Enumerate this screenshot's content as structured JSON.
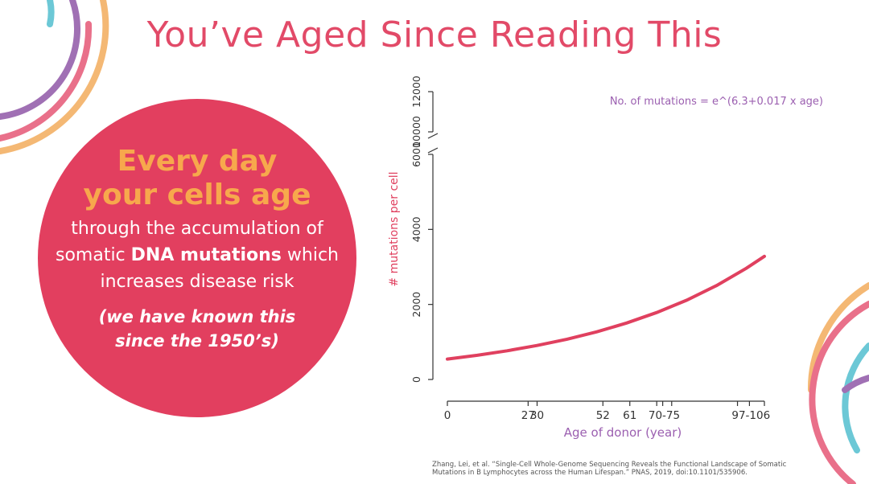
{
  "slide": {
    "title": "You’ve Aged Since Reading This",
    "callout": {
      "line1": "Every day",
      "line2": "your cells age",
      "body_line1": "through the accumulation of",
      "body_line2_pre": "somatic ",
      "body_line2_bold": "DNA mutations",
      "body_line2_post": " which",
      "body_line3": "increases disease risk",
      "note_line1": "(we have known this",
      "note_line2": "since the 1950’s)"
    },
    "citation_line1": "Zhang, Lei, et al. “Single-Cell Whole-Genome Sequencing Reveals the Functional Landscape of Somatic",
    "citation_line2": "Mutations in B Lymphocytes across the Human Lifespan.” PNAS, 2019, doi:10.1101/535906."
  },
  "colors": {
    "title": "#e24a68",
    "circle": "#e23f5f",
    "callout_heading": "#f7a84c",
    "curve": "#e0405f",
    "axis_label": "#9b5fb0",
    "arc_teal": "#6cc8d6",
    "arc_purple": "#a070b4",
    "arc_pink": "#e9708a",
    "arc_orange": "#f4b874"
  },
  "chart_data": {
    "type": "line",
    "formula": "No. of mutations = e^(6.3+0.017 x age)",
    "xlabel": "Age of donor (year)",
    "ylabel": "# mutations per cell",
    "x_ticks": [
      0,
      27,
      30,
      52,
      61,
      70,
      72,
      75,
      97,
      101,
      106
    ],
    "x_tick_labels": [
      {
        "label": "0",
        "x": 0
      },
      {
        "label": "27",
        "x": 27
      },
      {
        "label": "30",
        "x": 30
      },
      {
        "label": "52",
        "x": 52
      },
      {
        "label": "61",
        "x": 61
      },
      {
        "label": "70-75",
        "x": 72.5
      },
      {
        "label": "97-106",
        "x": 101.5
      }
    ],
    "xlim": [
      0,
      106
    ],
    "y_ticks_lower": [
      0,
      2000,
      4000,
      6000
    ],
    "y_ticks_upper": [
      10000,
      12000
    ],
    "ylim": [
      0,
      12000
    ],
    "axis_break": {
      "from": 6000,
      "to": 10000
    },
    "series": [
      {
        "x": [
          0,
          10,
          20,
          30,
          40,
          50,
          60,
          70,
          80,
          90,
          100,
          106
        ],
        "y": [
          545,
          646,
          765,
          906,
          1073,
          1271,
          1506,
          1784,
          2113,
          2503,
          2965,
          3283
        ]
      }
    ]
  }
}
